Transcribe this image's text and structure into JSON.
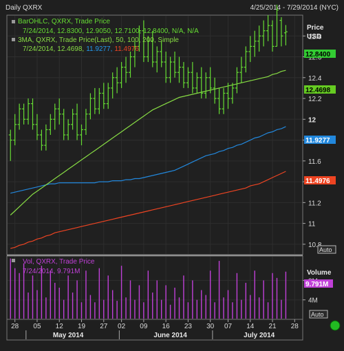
{
  "window": {
    "title": "Daily QXRX",
    "date_range": "4/25/2014 - 7/29/2014 (NYC)"
  },
  "colors": {
    "background": "#1f1f1f",
    "plot_bg": "#202020",
    "grid": "#2e2e2e",
    "bars": "#66dd33",
    "ma50": "#88dd44",
    "ma100": "#2288dd",
    "ma200": "#ee4422",
    "volume": "#c040d8",
    "price_tag": "#33cc33",
    "ma50_tag": "#66cc22",
    "ma100_tag": "#2288dd",
    "ma200_tag": "#ee4422"
  },
  "legend": {
    "ohlc_title": "BarOHLC, QXRX, Trade Price",
    "ohlc_values": "7/24/2014, 12.8300, 12.9050, 12.7100, 12.8400, N/A, N/A",
    "ma_title": "3MA, QXRX, Trade Price(Last), 50, 100, 200, Simple",
    "ma_date": "7/24/2014,",
    "ma50_value": "12.4698,",
    "ma100_value": "11.9277,",
    "ma200_value": "11.4976",
    "vol_title": "Vol, QXRX, Trade Price",
    "vol_values": "7/24/2014, 9.791M"
  },
  "axis": {
    "price_label": "Price",
    "price_unit": "USD",
    "volume_label": "Volume",
    "auto_label": "Auto",
    "auto_label_vol": "Auto"
  },
  "chart_data": {
    "type": "ohlc",
    "title": "Daily QXRX",
    "y_ticks": [
      12.8,
      12.6,
      12.4,
      12.2,
      12,
      11.8,
      11.6,
      11.4,
      11.2,
      11,
      10.8
    ],
    "y_tick_labels": [
      "12.8",
      "12.6",
      "12.4",
      "12.2",
      "12",
      "11.8",
      "11.6",
      "11.4",
      "11.2",
      "11",
      "10.8"
    ],
    "ylim": [
      10.7,
      13.0
    ],
    "vol_ticks": [
      8,
      4
    ],
    "vol_tick_labels": [
      "8M",
      "4M"
    ],
    "vol_ylim": [
      0,
      13
    ],
    "day_ticks": [
      {
        "label": "28",
        "day": 1
      },
      {
        "label": "05",
        "day": 6
      },
      {
        "label": "12",
        "day": 11
      },
      {
        "label": "19",
        "day": 16
      },
      {
        "label": "27",
        "day": 21
      },
      {
        "label": "02",
        "day": 25
      },
      {
        "label": "09",
        "day": 30
      },
      {
        "label": "16",
        "day": 35
      },
      {
        "label": "23",
        "day": 40
      },
      {
        "label": "30",
        "day": 45
      },
      {
        "label": "07",
        "day": 49
      },
      {
        "label": "14",
        "day": 54
      },
      {
        "label": "21",
        "day": 59
      },
      {
        "label": "28",
        "day": 64
      }
    ],
    "months": [
      {
        "label": "May 2014",
        "day": 13
      },
      {
        "label": "June 2014",
        "day": 36
      },
      {
        "label": "July 2014",
        "day": 56
      }
    ],
    "month_separators": [
      3.5,
      24.5,
      45.5
    ],
    "x_range": [
      -0.5,
      65.5
    ],
    "ohlc": [
      [
        11.85,
        11.9,
        11.6,
        11.8
      ],
      [
        11.8,
        12.05,
        11.75,
        11.95
      ],
      [
        11.95,
        12.15,
        11.9,
        12.1
      ],
      [
        12.1,
        12.15,
        11.95,
        12.0
      ],
      [
        12.0,
        12.2,
        11.95,
        12.15
      ],
      [
        12.15,
        12.2,
        11.9,
        11.95
      ],
      [
        11.95,
        12.05,
        11.8,
        11.85
      ],
      [
        11.85,
        11.9,
        11.7,
        11.75
      ],
      [
        11.75,
        11.95,
        11.7,
        11.9
      ],
      [
        11.9,
        12.05,
        11.85,
        12.0
      ],
      [
        12.0,
        12.15,
        11.9,
        12.1
      ],
      [
        12.1,
        12.2,
        11.95,
        12.05
      ],
      [
        12.05,
        12.1,
        11.8,
        11.85
      ],
      [
        11.85,
        12.0,
        11.8,
        11.95
      ],
      [
        11.95,
        12.1,
        11.9,
        12.05
      ],
      [
        12.05,
        12.15,
        11.8,
        11.85
      ],
      [
        11.85,
        11.95,
        11.75,
        11.9
      ],
      [
        11.9,
        12.1,
        11.85,
        12.05
      ],
      [
        12.05,
        12.25,
        12.0,
        12.2
      ],
      [
        12.2,
        12.3,
        12.05,
        12.1
      ],
      [
        12.1,
        12.3,
        12.05,
        12.25
      ],
      [
        12.25,
        12.35,
        12.1,
        12.15
      ],
      [
        12.15,
        12.35,
        12.1,
        12.3
      ],
      [
        12.3,
        12.45,
        12.2,
        12.4
      ],
      [
        12.4,
        12.5,
        12.25,
        12.35
      ],
      [
        12.35,
        12.55,
        12.3,
        12.5
      ],
      [
        12.5,
        12.6,
        12.35,
        12.45
      ],
      [
        12.45,
        12.65,
        12.4,
        12.6
      ],
      [
        12.6,
        12.75,
        12.5,
        12.7
      ],
      [
        12.7,
        12.9,
        12.65,
        12.85
      ],
      [
        12.85,
        12.95,
        12.55,
        12.6
      ],
      [
        12.6,
        12.8,
        12.55,
        12.75
      ],
      [
        12.75,
        12.85,
        12.5,
        12.55
      ],
      [
        12.55,
        12.7,
        12.45,
        12.65
      ],
      [
        12.65,
        12.75,
        12.5,
        12.55
      ],
      [
        12.55,
        12.65,
        12.35,
        12.4
      ],
      [
        12.4,
        12.6,
        12.35,
        12.55
      ],
      [
        12.55,
        12.65,
        12.4,
        12.45
      ],
      [
        12.45,
        12.6,
        12.35,
        12.5
      ],
      [
        12.5,
        12.55,
        12.3,
        12.35
      ],
      [
        12.35,
        12.5,
        12.3,
        12.45
      ],
      [
        12.45,
        12.55,
        12.25,
        12.3
      ],
      [
        12.3,
        12.45,
        12.25,
        12.4
      ],
      [
        12.4,
        12.5,
        12.2,
        12.25
      ],
      [
        12.25,
        12.45,
        12.2,
        12.4
      ],
      [
        12.4,
        12.5,
        12.25,
        12.3
      ],
      [
        12.3,
        12.4,
        12.15,
        12.2
      ],
      [
        12.2,
        12.3,
        12.05,
        12.1
      ],
      [
        12.1,
        12.3,
        12.05,
        12.25
      ],
      [
        12.25,
        12.35,
        12.1,
        12.2
      ],
      [
        12.2,
        12.35,
        12.15,
        12.3
      ],
      [
        12.3,
        12.5,
        12.25,
        12.45
      ],
      [
        12.45,
        12.6,
        12.35,
        12.5
      ],
      [
        12.5,
        12.7,
        12.45,
        12.65
      ],
      [
        12.65,
        12.8,
        12.55,
        12.7
      ],
      [
        12.7,
        12.85,
        12.6,
        12.75
      ],
      [
        12.75,
        12.9,
        12.65,
        12.8
      ],
      [
        12.8,
        12.95,
        12.7,
        12.85
      ],
      [
        12.85,
        13.0,
        12.75,
        12.9
      ],
      [
        12.9,
        12.95,
        12.65,
        12.7
      ],
      [
        12.7,
        13.1,
        12.7,
        13.05
      ],
      [
        12.95,
        12.98,
        12.7,
        12.8
      ],
      [
        12.83,
        12.905,
        12.71,
        12.84
      ]
    ],
    "ma50": [
      11.08,
      11.12,
      11.16,
      11.2,
      11.24,
      11.28,
      11.31,
      11.34,
      11.37,
      11.4,
      11.43,
      11.46,
      11.49,
      11.52,
      11.55,
      11.58,
      11.61,
      11.64,
      11.67,
      11.7,
      11.73,
      11.76,
      11.79,
      11.82,
      11.85,
      11.88,
      11.91,
      11.94,
      11.97,
      12.0,
      12.03,
      12.06,
      12.09,
      12.11,
      12.13,
      12.15,
      12.17,
      12.19,
      12.21,
      12.22,
      12.23,
      12.24,
      12.25,
      12.26,
      12.27,
      12.28,
      12.29,
      12.3,
      12.31,
      12.32,
      12.33,
      12.34,
      12.35,
      12.36,
      12.37,
      12.38,
      12.39,
      12.4,
      12.41,
      12.43,
      12.44,
      12.46,
      12.47
    ],
    "ma100": [
      11.29,
      11.3,
      11.31,
      11.32,
      11.33,
      11.34,
      11.35,
      11.36,
      11.37,
      11.38,
      11.38,
      11.39,
      11.39,
      11.39,
      11.39,
      11.39,
      11.39,
      11.39,
      11.39,
      11.39,
      11.4,
      11.4,
      11.4,
      11.41,
      11.41,
      11.41,
      11.42,
      11.42,
      11.43,
      11.43,
      11.44,
      11.45,
      11.46,
      11.47,
      11.48,
      11.49,
      11.5,
      11.51,
      11.53,
      11.55,
      11.57,
      11.59,
      11.61,
      11.63,
      11.65,
      11.66,
      11.67,
      11.69,
      11.7,
      11.72,
      11.73,
      11.75,
      11.76,
      11.78,
      11.8,
      11.82,
      11.83,
      11.85,
      11.87,
      11.88,
      11.9,
      11.91,
      11.93
    ],
    "ma200": [
      10.76,
      10.77,
      10.79,
      10.8,
      10.82,
      10.83,
      10.85,
      10.86,
      10.88,
      10.89,
      10.91,
      10.92,
      10.93,
      10.94,
      10.95,
      10.96,
      10.97,
      10.98,
      10.99,
      11.0,
      11.01,
      11.02,
      11.03,
      11.04,
      11.05,
      11.06,
      11.07,
      11.08,
      11.09,
      11.1,
      11.11,
      11.12,
      11.13,
      11.14,
      11.15,
      11.16,
      11.17,
      11.18,
      11.19,
      11.2,
      11.21,
      11.22,
      11.23,
      11.24,
      11.25,
      11.26,
      11.27,
      11.28,
      11.29,
      11.3,
      11.31,
      11.32,
      11.33,
      11.34,
      11.36,
      11.37,
      11.38,
      11.4,
      11.42,
      11.44,
      11.46,
      11.48,
      11.5
    ],
    "volume": [
      12.5,
      10.5,
      9.5,
      11.5,
      5.5,
      9.0,
      6.0,
      11.0,
      4.5,
      10.0,
      7.5,
      6.5,
      4.0,
      9.0,
      5.5,
      8.0,
      3.5,
      10.0,
      5.0,
      3.5,
      10.5,
      4.0,
      9.0,
      6.0,
      3.8,
      11.0,
      4.5,
      8.0,
      4.0,
      7.0,
      3.5,
      10.0,
      5.5,
      8.0,
      4.0,
      7.0,
      3.0,
      6.5,
      4.5,
      9.0,
      3.5,
      8.0,
      4.0,
      6.0,
      5.0,
      10.0,
      3.5,
      12.0,
      4.5,
      6.0,
      3.5,
      9.5,
      4.0,
      7.5,
      5.0,
      10.0,
      4.5,
      8.0,
      3.5,
      9.5,
      8.5,
      4.0,
      9.791
    ],
    "last_price": "12.8400",
    "ma50_last": "12.4698",
    "ma100_last": "11.9277",
    "ma200_last": "11.4976",
    "vol_last": "9.791M"
  }
}
